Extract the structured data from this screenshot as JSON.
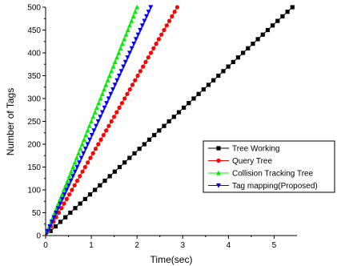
{
  "chart_data": {
    "type": "line",
    "xlabel": "Time(sec)",
    "ylabel": "Number of Tags",
    "xlim": [
      0,
      5.5
    ],
    "ylim": [
      0,
      500
    ],
    "x_ticks": [
      "0",
      "1",
      "2",
      "3",
      "4",
      "5"
    ],
    "y_ticks": [
      "0",
      "50",
      "100",
      "150",
      "200",
      "250",
      "300",
      "350",
      "400",
      "450",
      "500"
    ],
    "grid": false,
    "legend_position": "lower-right",
    "marker_step_tags": 10,
    "series": [
      {
        "name": "Tree Working",
        "color": "#000000",
        "marker": "square",
        "points": [
          [
            0,
            0
          ],
          [
            5.4,
            500
          ]
        ]
      },
      {
        "name": "Query Tree",
        "color": "#ff0000",
        "marker": "circle",
        "points": [
          [
            0,
            0
          ],
          [
            2.88,
            500
          ]
        ]
      },
      {
        "name": "Collision Tracking Tree",
        "color": "#00ee00",
        "marker": "triangle-up",
        "points": [
          [
            0,
            0
          ],
          [
            2.0,
            500
          ]
        ]
      },
      {
        "name": "Tag mapping(Proposed)",
        "color": "#0000ff",
        "marker": "triangle-down",
        "points": [
          [
            0,
            0
          ],
          [
            2.3,
            500
          ]
        ]
      }
    ]
  }
}
